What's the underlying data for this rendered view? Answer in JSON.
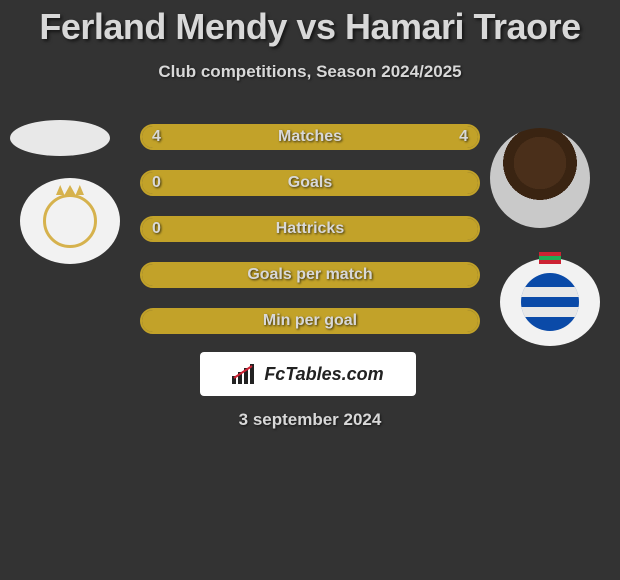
{
  "title": "Ferland Mendy vs Hamari Traore",
  "subtitle": "Club competitions, Season 2024/2025",
  "brand": "FcTables.com",
  "date_line": "3 september 2024",
  "colors": {
    "background": "#333333",
    "bar_border": "#c2a229",
    "bar_fill": "#c2a229",
    "text": "#d8d8d8",
    "brand_box_bg": "#ffffff"
  },
  "bars": [
    {
      "label": "Matches",
      "left_value": "4",
      "right_value": "4",
      "left_pct": 50,
      "right_pct": 50
    },
    {
      "label": "Goals",
      "left_value": "0",
      "right_value": "",
      "left_pct": 0,
      "right_pct": 100
    },
    {
      "label": "Hattricks",
      "left_value": "0",
      "right_value": "",
      "left_pct": 0,
      "right_pct": 100
    },
    {
      "label": "Goals per match",
      "left_value": "",
      "right_value": "",
      "left_pct": 100,
      "right_pct": 0
    },
    {
      "label": "Min per goal",
      "left_value": "",
      "right_value": "",
      "left_pct": 100,
      "right_pct": 0
    }
  ],
  "avatars": {
    "left_player": "ferland-mendy",
    "right_player": "hamari-traore",
    "left_crest": "real-madrid",
    "right_crest": "real-sociedad"
  }
}
